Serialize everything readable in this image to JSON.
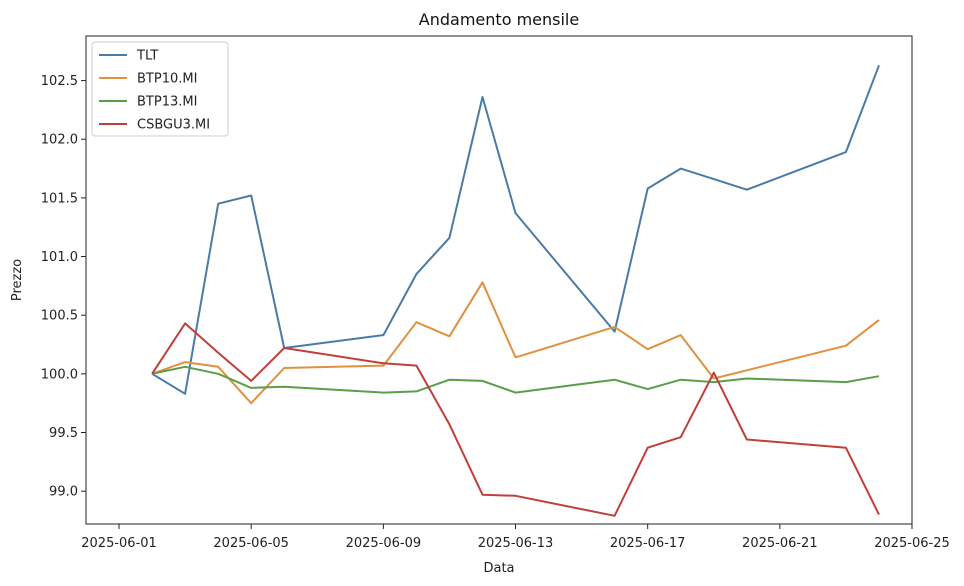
{
  "chart_data": {
    "type": "line",
    "title": "Andamento mensile",
    "xlabel": "Data",
    "ylabel": "Prezzo",
    "xlim": [
      "2025-05-31",
      "2025-06-25"
    ],
    "ylim": [
      98.72,
      102.88
    ],
    "xticks": [
      "2025-06-01",
      "2025-06-05",
      "2025-06-09",
      "2025-06-13",
      "2025-06-17",
      "2025-06-21",
      "2025-06-25"
    ],
    "yticks": [
      99.0,
      99.5,
      100.0,
      100.5,
      101.0,
      101.5,
      102.0,
      102.5
    ],
    "ytick_labels": [
      "99.0",
      "99.5",
      "100.0",
      "100.5",
      "101.0",
      "101.5",
      "102.0",
      "102.5"
    ],
    "legend_position": "top-left",
    "grid": false,
    "x": [
      "2025-06-02",
      "2025-06-03",
      "2025-06-04",
      "2025-06-05",
      "2025-06-06",
      "2025-06-09",
      "2025-06-10",
      "2025-06-11",
      "2025-06-12",
      "2025-06-13",
      "2025-06-16",
      "2025-06-17",
      "2025-06-18",
      "2025-06-19",
      "2025-06-20",
      "2025-06-23",
      "2025-06-24"
    ],
    "series": [
      {
        "name": "TLT",
        "color": "#4a7ba6",
        "values": [
          100.0,
          99.83,
          101.45,
          101.52,
          100.22,
          100.33,
          100.85,
          101.16,
          102.36,
          101.37,
          100.36,
          101.58,
          101.75,
          101.66,
          101.57,
          101.89,
          102.63
        ]
      },
      {
        "name": "BTP10.MI",
        "color": "#e0913f",
        "values": [
          100.0,
          100.1,
          100.06,
          99.75,
          100.05,
          100.07,
          100.44,
          100.32,
          100.78,
          100.14,
          100.4,
          100.21,
          100.33,
          99.96,
          100.03,
          100.24,
          100.46
        ]
      },
      {
        "name": "BTP13.MI",
        "color": "#5a9e48",
        "values": [
          100.0,
          100.06,
          100.0,
          99.88,
          99.89,
          99.84,
          99.85,
          99.95,
          99.94,
          99.84,
          99.95,
          99.87,
          99.95,
          99.93,
          99.96,
          99.93,
          99.98
        ]
      },
      {
        "name": "CSBGU3.MI",
        "color": "#c13f3a",
        "values": [
          100.0,
          100.43,
          100.18,
          99.94,
          100.22,
          100.09,
          100.07,
          99.57,
          98.97,
          98.96,
          98.79,
          99.37,
          99.46,
          100.01,
          99.44,
          99.37,
          98.8
        ]
      }
    ]
  }
}
